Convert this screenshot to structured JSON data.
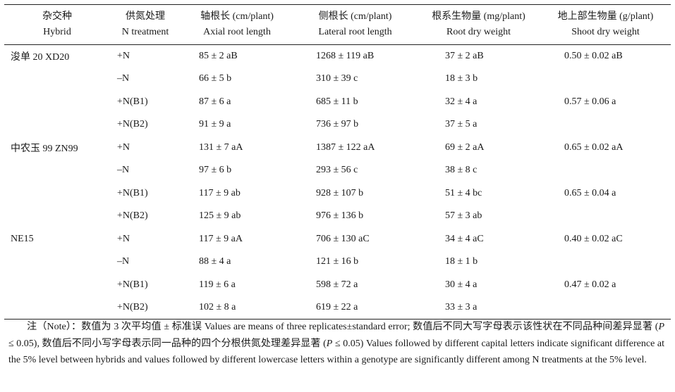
{
  "table": {
    "headers": [
      {
        "cn": "杂交种",
        "en": "Hybrid"
      },
      {
        "cn": "供氮处理",
        "en": "N treatment"
      },
      {
        "cn": "轴根长 (cm/plant)",
        "en": "Axial root length"
      },
      {
        "cn": "侧根长 (cm/plant)",
        "en": "Lateral root length"
      },
      {
        "cn": "根系生物量 (mg/plant)",
        "en": "Root dry weight"
      },
      {
        "cn": "地上部生物量 (g/plant)",
        "en": "Shoot dry weight"
      }
    ],
    "rows": [
      {
        "hybrid": "浚单 20 XD20",
        "n": "+N",
        "axial": "85 ± 2 aB",
        "lateral": "1268 ± 119 aB",
        "root": "37 ± 2 aB",
        "shoot": "0.50 ± 0.02 aB"
      },
      {
        "hybrid": "",
        "n": "–N",
        "axial": "66 ± 5 b",
        "lateral": "310 ± 39 c",
        "root": "18 ± 3 b",
        "shoot": ""
      },
      {
        "hybrid": "",
        "n": "+N(B1)",
        "axial": "87 ± 6 a",
        "lateral": "685 ± 11 b",
        "root": "32 ± 4 a",
        "shoot": "0.57 ± 0.06 a"
      },
      {
        "hybrid": "",
        "n": "+N(B2)",
        "axial": "91 ± 9 a",
        "lateral": "736 ± 97 b",
        "root": "37 ± 5 a",
        "shoot": ""
      },
      {
        "hybrid": "中农玉 99 ZN99",
        "n": "+N",
        "axial": "131 ± 7 aA",
        "lateral": "1387 ± 122 aA",
        "root": "69 ± 2 aA",
        "shoot": "0.65 ± 0.02 aA"
      },
      {
        "hybrid": "",
        "n": "–N",
        "axial": "97 ± 6 b",
        "lateral": "293 ± 56 c",
        "root": "38 ± 8 c",
        "shoot": ""
      },
      {
        "hybrid": "",
        "n": "+N(B1)",
        "axial": "117 ± 9 ab",
        "lateral": "928 ± 107 b",
        "root": "51 ± 4 bc",
        "shoot": "0.65 ± 0.04 a"
      },
      {
        "hybrid": "",
        "n": "+N(B2)",
        "axial": "125 ± 9 ab",
        "lateral": "976 ± 136 b",
        "root": "57 ± 3 ab",
        "shoot": ""
      },
      {
        "hybrid": "NE15",
        "n": "+N",
        "axial": "117 ± 9 aA",
        "lateral": "706 ± 130 aC",
        "root": "34 ± 4 aC",
        "shoot": "0.40 ± 0.02 aC"
      },
      {
        "hybrid": "",
        "n": "–N",
        "axial": "88 ± 4 a",
        "lateral": "121 ± 16 b",
        "root": "18 ± 1 b",
        "shoot": ""
      },
      {
        "hybrid": "",
        "n": "+N(B1)",
        "axial": "119 ± 6 a",
        "lateral": "598 ± 72 a",
        "root": "30 ± 4 a",
        "shoot": "0.47 ± 0.02 a"
      },
      {
        "hybrid": "",
        "n": "+N(B2)",
        "axial": "102 ± 8 a",
        "lateral": "619 ± 22 a",
        "root": "33 ± 3 a",
        "shoot": ""
      }
    ]
  },
  "note": {
    "part1": "注（Note）：数值为 3 次平均值 ± 标准误 Values are means of three replicates±standard error; 数值后不同大写字母表示该性状在不同品种间差异显著 (",
    "p1": "P",
    "part2": " ≤ 0.05), 数值后不同小写字母表示同一品种的四个分根供氮处理差异显著 (",
    "p2": "P",
    "part3": " ≤ 0.05) Values followed by different capital letters indicate significant difference at the 5% level between hybrids and values followed by different lowercase letters within a genotype are significantly different among N treatments at the 5% level."
  }
}
